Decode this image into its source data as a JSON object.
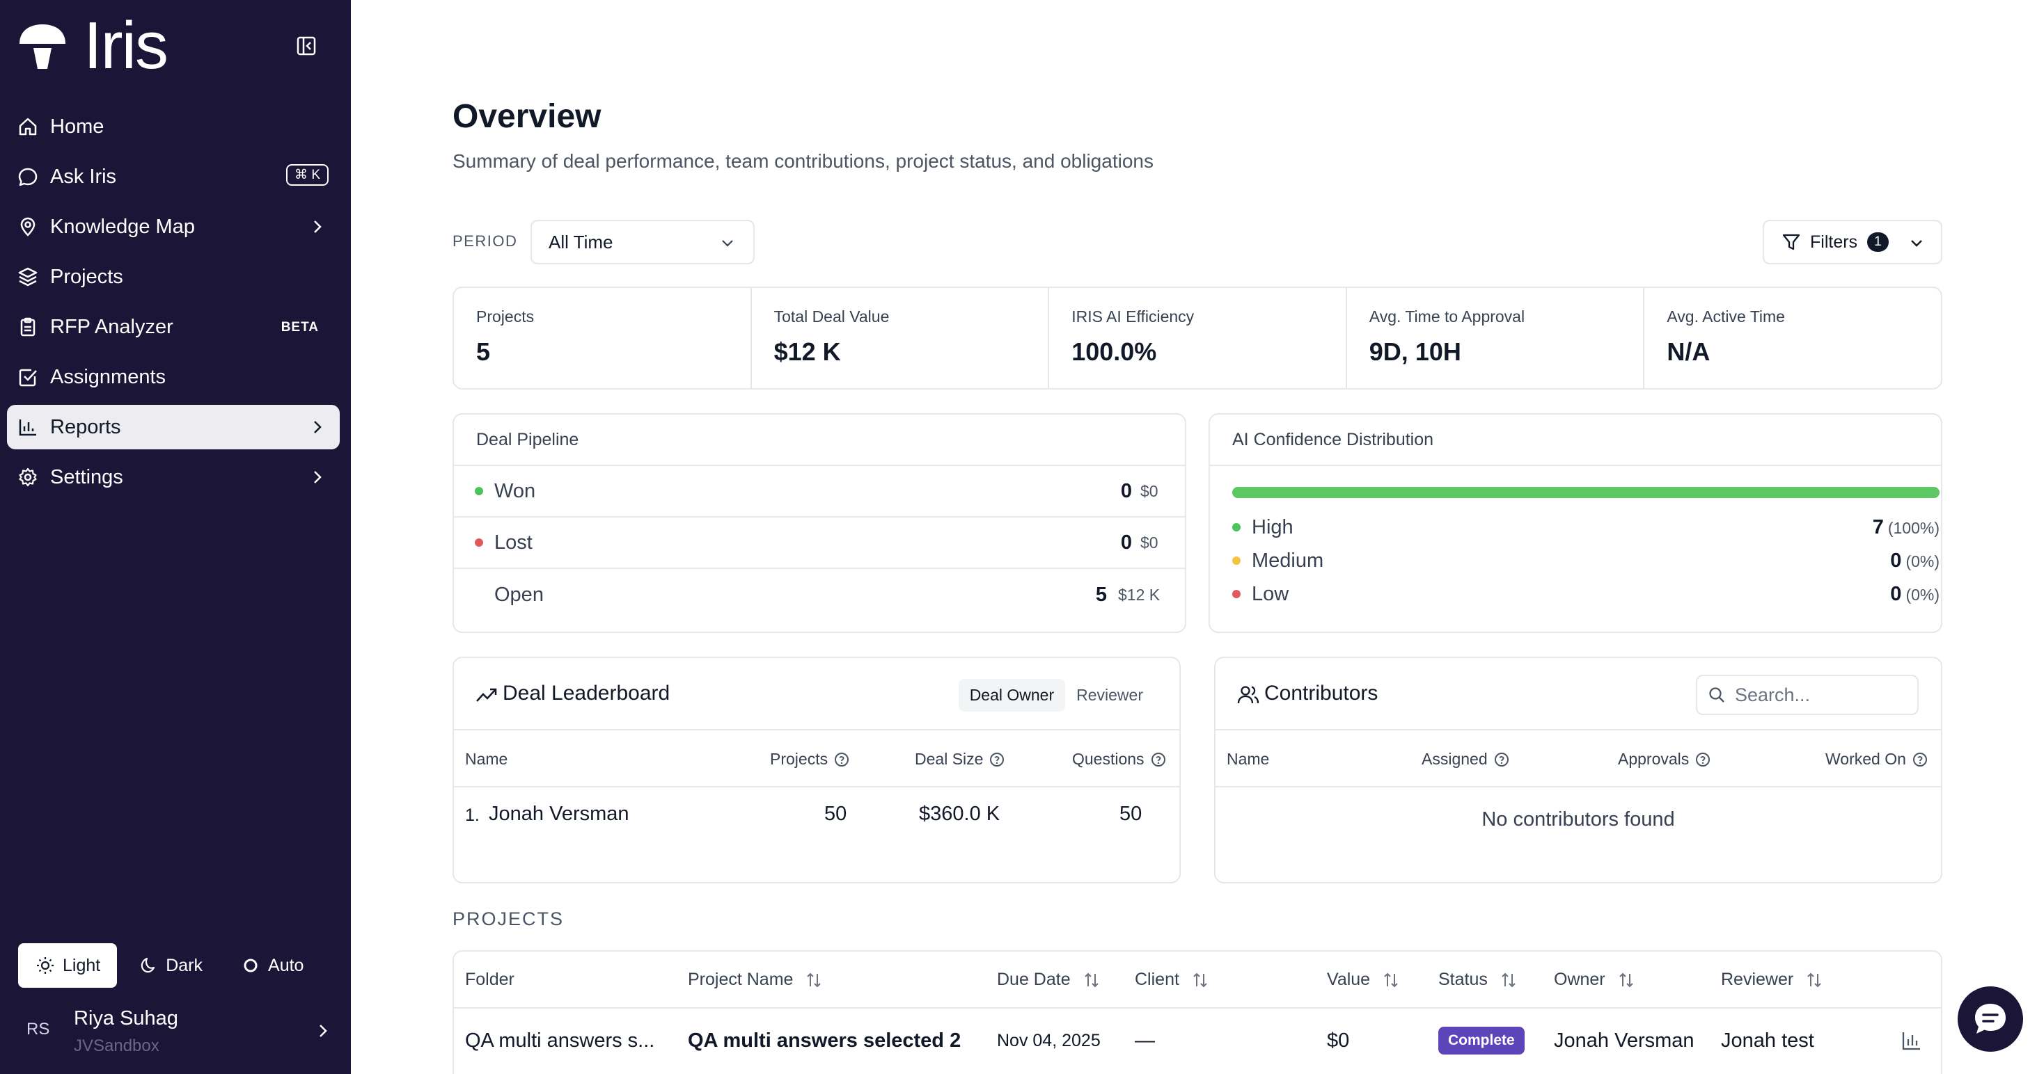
{
  "app": {
    "name": "Iris"
  },
  "sidebar": {
    "items": [
      {
        "label": "Home"
      },
      {
        "label": "Ask Iris",
        "shortcut": "⌘ K"
      },
      {
        "label": "Knowledge Map"
      },
      {
        "label": "Projects"
      },
      {
        "label": "RFP Analyzer",
        "badge": "BETA"
      },
      {
        "label": "Assignments"
      },
      {
        "label": "Reports"
      },
      {
        "label": "Settings"
      }
    ],
    "theme": {
      "light": "Light",
      "dark": "Dark",
      "auto": "Auto"
    },
    "user": {
      "initials": "RS",
      "name": "Riya Suhag",
      "org": "JVSandbox"
    }
  },
  "header": {
    "title": "Overview",
    "subtitle": "Summary of deal performance, team contributions, project status, and obligations"
  },
  "controls": {
    "period_label": "PERIOD",
    "period_value": "All Time",
    "filters_label": "Filters",
    "filters_count": "1"
  },
  "stats": [
    {
      "label": "Projects",
      "value": "5"
    },
    {
      "label": "Total Deal Value",
      "value": "$12 K"
    },
    {
      "label": "IRIS AI Efficiency",
      "value": "100.0%"
    },
    {
      "label": "Avg. Time to Approval",
      "value": "9D, 10H"
    },
    {
      "label": "Avg. Active Time",
      "value": "N/A"
    }
  ],
  "pipeline": {
    "title": "Deal Pipeline",
    "rows": [
      {
        "label": "Won",
        "count": "0",
        "amount": "$0"
      },
      {
        "label": "Lost",
        "count": "0",
        "amount": "$0"
      },
      {
        "label": "Open",
        "count": "5",
        "amount": "$12 K"
      }
    ]
  },
  "confidence": {
    "title": "AI Confidence Distribution",
    "rows": [
      {
        "label": "High",
        "count": "7",
        "pct": "(100%)"
      },
      {
        "label": "Medium",
        "count": "0",
        "pct": "(0%)"
      },
      {
        "label": "Low",
        "count": "0",
        "pct": "(0%)"
      }
    ]
  },
  "leaderboard": {
    "title": "Deal Leaderboard",
    "tabs": [
      "Deal Owner",
      "Reviewer"
    ],
    "columns": [
      "Name",
      "Projects",
      "Deal Size",
      "Questions"
    ],
    "rows": [
      {
        "rank": "1.",
        "name": "Jonah Versman",
        "projects": "50",
        "deal_size": "$360.0 K",
        "questions": "50"
      }
    ]
  },
  "contributors": {
    "title": "Contributors",
    "search_placeholder": "Search...",
    "columns": [
      "Name",
      "Assigned",
      "Approvals",
      "Worked On"
    ],
    "empty": "No contributors found"
  },
  "projects": {
    "section_label": "PROJECTS",
    "columns": [
      "Folder",
      "Project Name",
      "Due Date",
      "Client",
      "Value",
      "Status",
      "Owner",
      "Reviewer"
    ],
    "rows": [
      {
        "folder": "QA multi answers s...",
        "name": "QA multi answers selected 2",
        "due": "Nov 04, 2025",
        "client": "—",
        "value": "$0",
        "status": "Complete",
        "owner": "Jonah Versman",
        "reviewer": "Jonah test"
      }
    ]
  },
  "colors": {
    "sidebar_bg": "#1b1638",
    "won": "#4cc45a",
    "lost": "#e05a5a",
    "high": "#4cc45a",
    "medium": "#f2c53d",
    "low": "#e05a5a",
    "status_complete": "#5b45b8"
  }
}
